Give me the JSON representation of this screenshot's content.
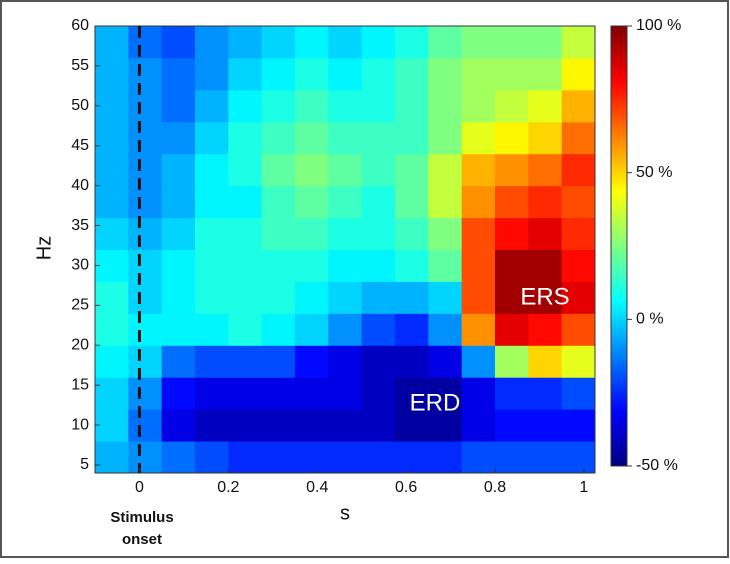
{
  "chart_data": {
    "type": "heatmap",
    "x_label": "s",
    "y_label": "Hz",
    "xlim": [
      -0.1,
      1.025
    ],
    "ylim": [
      4,
      60
    ],
    "xticks": [
      0,
      0.2,
      0.4,
      0.6,
      0.8,
      1
    ],
    "yticks": [
      5,
      10,
      15,
      20,
      25,
      30,
      35,
      40,
      45,
      50,
      55,
      60
    ],
    "colormap": "jet",
    "clim": [
      -50,
      100
    ],
    "colorbar_ticks": [
      {
        "value": 100,
        "label": "100 %"
      },
      {
        "value": 50,
        "label": "50 %"
      },
      {
        "value": 0,
        "label": "0 %"
      },
      {
        "value": -50,
        "label": "-50 %"
      }
    ],
    "z": [
      [
        -5,
        -10,
        -15,
        -20,
        -25,
        -25,
        -25,
        -25,
        -25,
        -25,
        -25,
        -20,
        -20,
        -20,
        -20
      ],
      [
        0,
        -15,
        -35,
        -40,
        -40,
        -40,
        -40,
        -40,
        -40,
        -45,
        -45,
        -35,
        -30,
        -30,
        -30
      ],
      [
        0,
        -10,
        -30,
        -35,
        -35,
        -35,
        -35,
        -35,
        -40,
        -45,
        -45,
        -35,
        -25,
        -25,
        -20
      ],
      [
        5,
        0,
        -15,
        -20,
        -20,
        -20,
        -30,
        -35,
        -40,
        -40,
        -35,
        -10,
        30,
        50,
        40
      ],
      [
        10,
        5,
        5,
        5,
        10,
        5,
        0,
        -10,
        -20,
        -25,
        -10,
        60,
        85,
        80,
        70
      ],
      [
        10,
        0,
        5,
        10,
        10,
        10,
        5,
        0,
        -5,
        -5,
        0,
        70,
        95,
        95,
        85
      ],
      [
        5,
        0,
        5,
        10,
        10,
        10,
        10,
        5,
        5,
        10,
        20,
        70,
        95,
        95,
        80
      ],
      [
        0,
        -5,
        0,
        10,
        10,
        15,
        15,
        10,
        10,
        15,
        25,
        70,
        80,
        85,
        75
      ],
      [
        -5,
        -10,
        -5,
        5,
        5,
        15,
        20,
        15,
        10,
        20,
        35,
        60,
        70,
        75,
        70
      ],
      [
        -5,
        -10,
        -5,
        5,
        10,
        20,
        25,
        20,
        15,
        20,
        35,
        55,
        60,
        65,
        75
      ],
      [
        -5,
        -10,
        -10,
        0,
        10,
        15,
        20,
        15,
        15,
        15,
        25,
        40,
        45,
        50,
        65
      ],
      [
        -5,
        -10,
        -15,
        -5,
        5,
        10,
        15,
        10,
        10,
        15,
        25,
        30,
        35,
        40,
        55
      ],
      [
        -5,
        -10,
        -15,
        -10,
        0,
        5,
        10,
        5,
        10,
        15,
        25,
        30,
        30,
        30,
        45
      ],
      [
        -5,
        -15,
        -20,
        -10,
        -5,
        0,
        5,
        0,
        5,
        10,
        20,
        25,
        25,
        25,
        35
      ]
    ],
    "vline": 0,
    "annotations": [
      "ERS",
      "ERD"
    ],
    "vline_label": [
      "Stimulus",
      "onset"
    ]
  }
}
